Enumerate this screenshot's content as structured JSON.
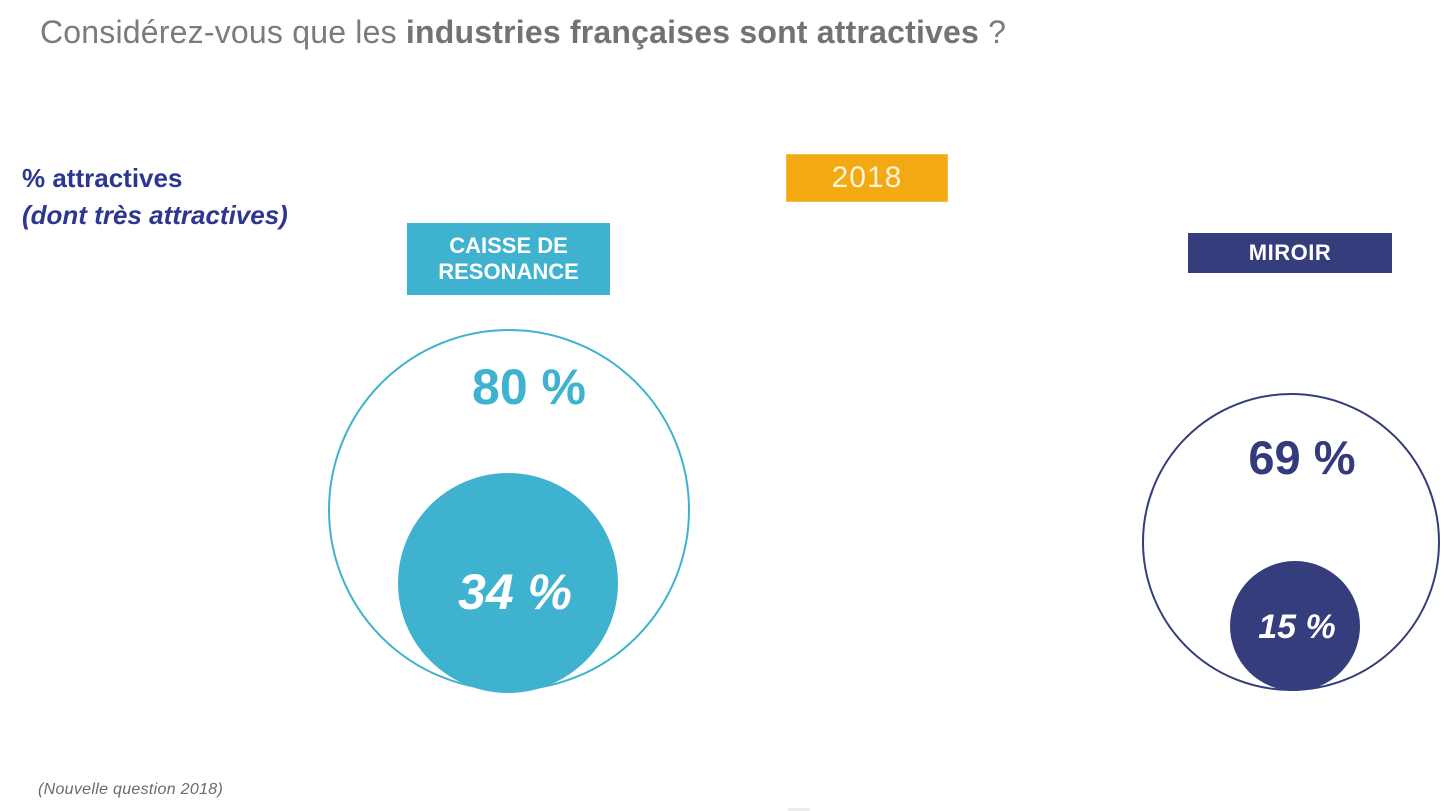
{
  "slide": {
    "title": {
      "prefix": "Considérez-vous que les ",
      "bold": "industries françaises sont attractives",
      "suffix": " ?"
    },
    "metric_label": {
      "line1": "% attractives",
      "line2": "(dont très attractives)"
    },
    "year_badge": "2018",
    "note": "(Nouvelle question 2018)"
  },
  "colors": {
    "teal": "#3fb2d0",
    "navy": "#353d7d",
    "navy_text": "#2e3790",
    "orange": "#f2a912",
    "badge_text": "#fcf3d9",
    "title_gray": "#7b7b7b",
    "note_gray": "#6b6b6b"
  },
  "chart_data": {
    "type": "bubble",
    "title": "Considérez-vous que les industries françaises sont attractives ?",
    "subtitle": "% attractives (dont très attractives)",
    "year": "2018",
    "legend_position": "above-each-bubble",
    "series": [
      {
        "name": "CAISSE DE RESONANCE",
        "attractives_pct": 80,
        "dont_tres_attractives_pct": 34,
        "outer_label": "80 %",
        "inner_label": "34 %",
        "color": "#3fb2d0"
      },
      {
        "name": "MIROIR",
        "attractives_pct": 69,
        "dont_tres_attractives_pct": 15,
        "outer_label": "69 %",
        "inner_label": "15 %",
        "color": "#353d7d"
      }
    ],
    "note": "(Nouvelle question 2018)"
  }
}
